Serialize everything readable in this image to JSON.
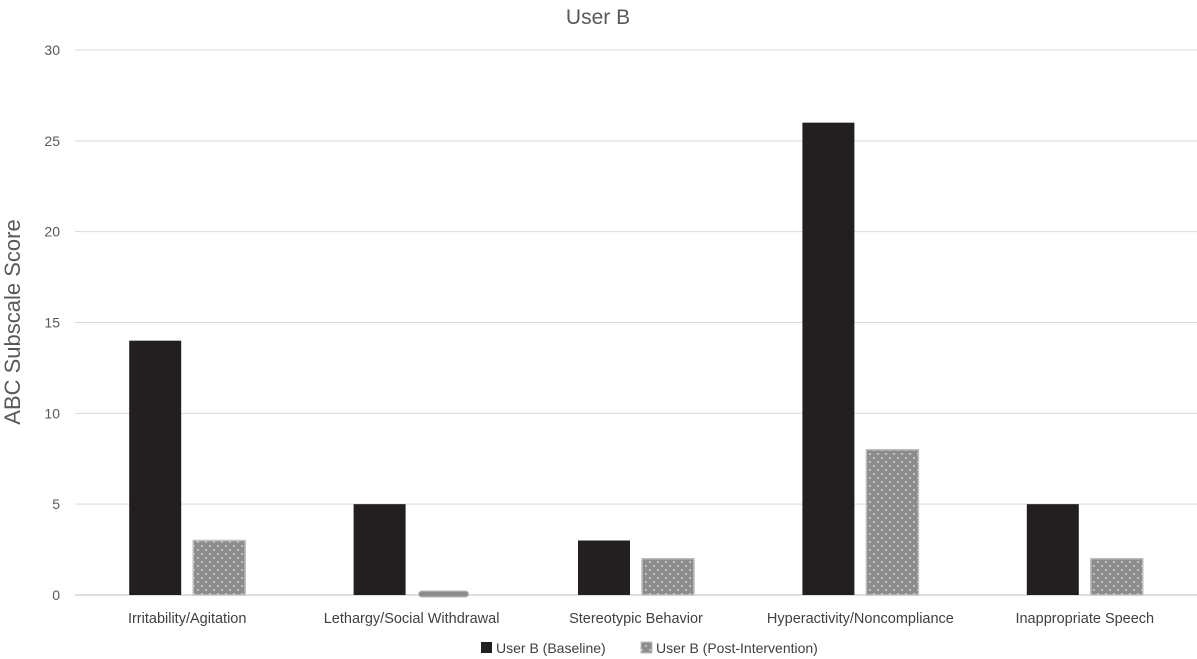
{
  "chart_data": {
    "type": "bar",
    "title": "User B",
    "xlabel": "",
    "ylabel": "ABC Subscale Score",
    "ylim": [
      0,
      30
    ],
    "yticks": [
      0,
      5,
      10,
      15,
      20,
      25,
      30
    ],
    "categories": [
      "Irritability/Agitation",
      "Lethargy/Social Withdrawal",
      "Stereotypic Behavior",
      "Hyperactivity/Noncompliance",
      "Inappropriate Speech"
    ],
    "series": [
      {
        "name": "User B (Baseline)",
        "values": [
          14,
          5,
          3,
          26,
          5
        ],
        "color": "#231f20",
        "pattern": "solid"
      },
      {
        "name": "User B (Post-Intervention)",
        "values": [
          3,
          0,
          2,
          8,
          2
        ],
        "color": "#8c8c8c",
        "pattern": "dotted"
      }
    ],
    "grid": true,
    "legend_position": "bottom"
  }
}
